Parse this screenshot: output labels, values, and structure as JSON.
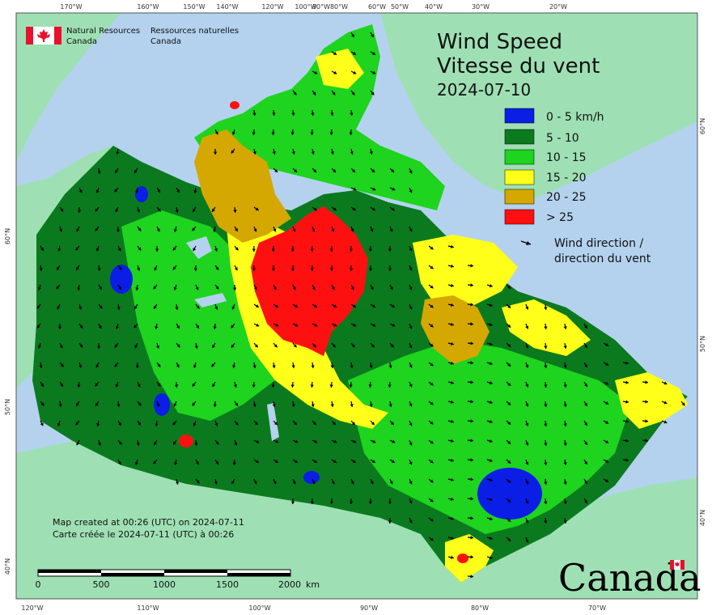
{
  "org": {
    "name_en_1": "Natural Resources",
    "name_en_2": "Canada",
    "name_fr_1": "Ressources naturelles",
    "name_fr_2": "Canada",
    "flag_red": "#e8112d"
  },
  "title": {
    "line1": "Wind Speed",
    "line2": "Vitesse du vent",
    "date": "2024-07-10"
  },
  "legend": {
    "items": [
      {
        "label": "0 - 5 km/h",
        "color": "#0a1ee6"
      },
      {
        "label": "5 - 10",
        "color": "#0b7a1f"
      },
      {
        "label": "10 - 15",
        "color": "#1ed41e"
      },
      {
        "label": "15 - 20",
        "color": "#ffff1a"
      },
      {
        "label": "20 - 25",
        "color": "#d4a800"
      },
      {
        "label": "> 25",
        "color": "#ff1010"
      }
    ],
    "arrow_label_1": "Wind direction /",
    "arrow_label_2": "direction du vent"
  },
  "credits": {
    "line1": "Map created at 00:26 (UTC) on 2024-07-11",
    "line2": "Carte créée le 2024-07-11 (UTC) à 00:26"
  },
  "scale_bar": {
    "labels": [
      "0",
      "500",
      "1000",
      "1500",
      "2000"
    ],
    "unit": "km"
  },
  "top_ticks": [
    "170°W",
    "160°W",
    "150°W",
    "140°W",
    "120°W",
    "100°W",
    "90°W",
    "80°W",
    "60°W",
    "50°W",
    "40°W",
    "30°W",
    "20°W"
  ],
  "bottom_ticks": [
    "120°W",
    "110°W",
    "100°W",
    "90°W",
    "80°W",
    "70°W"
  ],
  "left_ticks": [
    "60°N",
    "50°N",
    "40°N"
  ],
  "right_ticks": [
    "60°N",
    "50°N",
    "40°N"
  ],
  "wordmark": "Canada",
  "colors": {
    "ocean": "#b4d2ee",
    "land": "#9ee0b4",
    "arrow": "#000000"
  }
}
